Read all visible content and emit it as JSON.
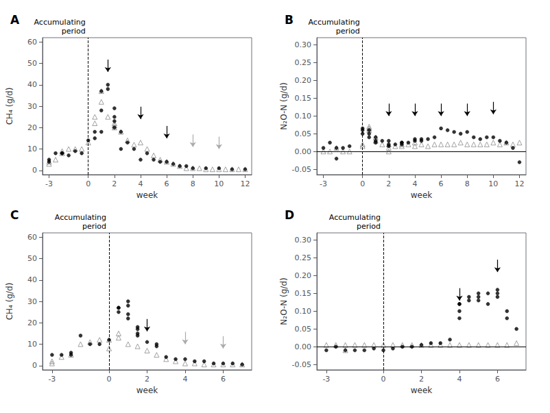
{
  "chart_data": [
    {
      "type": "scatter",
      "title": "A",
      "xlabel": "week",
      "ylabel": "CH₄ (g/d)",
      "xlim": [
        -3.5,
        12.5
      ],
      "ylim": [
        -2,
        62
      ],
      "xticks": [
        -3,
        0,
        2,
        4,
        6,
        8,
        10,
        12
      ],
      "yticks": [
        0,
        10,
        20,
        30,
        40,
        50,
        60
      ],
      "grid": false,
      "vline": 0,
      "annotation": "Accumulating\nperiod",
      "arrows": [
        {
          "x": 1.5,
          "y": 46,
          "color": "black"
        },
        {
          "x": 4,
          "y": 24,
          "color": "black"
        },
        {
          "x": 6,
          "y": 15,
          "color": "black"
        },
        {
          "x": 8,
          "y": 11,
          "color": "#aaaaaa"
        },
        {
          "x": 10,
          "y": 10,
          "color": "#aaaaaa"
        }
      ],
      "series": [
        {
          "marker": "triangle-open",
          "color": "#888888",
          "x": [
            -3,
            -3,
            -2.5,
            -2,
            -2,
            -1.5,
            -1,
            -0.5,
            0,
            0.5,
            0.5,
            1,
            1,
            1.5,
            2,
            2,
            2,
            2.5,
            3,
            3.5,
            4,
            4.5,
            5,
            5.5,
            6,
            6.5,
            7,
            7.5,
            8,
            8.5,
            9,
            9.5,
            10,
            10.5,
            11,
            11.5,
            12
          ],
          "values": [
            4,
            3,
            5,
            8,
            9,
            10,
            10,
            10,
            13,
            25,
            22,
            32,
            37,
            25,
            22,
            21,
            20,
            18,
            14,
            12,
            13,
            10,
            7,
            5,
            4,
            3,
            2,
            1,
            1,
            1,
            0.5,
            0.5,
            0.5,
            0.5,
            0.5,
            0.5,
            0.5
          ]
        },
        {
          "marker": "circle",
          "color": "black",
          "x": [
            -3,
            -3,
            -2.5,
            -2,
            -2,
            -1.5,
            -1,
            -0.5,
            0,
            0.5,
            0.5,
            1,
            1,
            1,
            1.5,
            1.5,
            2,
            2,
            2,
            2,
            2.5,
            2.5,
            3,
            3.5,
            4,
            4.5,
            5,
            5.5,
            6,
            6.5,
            7,
            7.5,
            8,
            9,
            10,
            11,
            12
          ],
          "values": [
            5,
            4,
            8,
            8,
            8,
            7,
            9,
            8,
            14,
            18,
            15,
            18,
            28,
            37,
            40,
            38,
            29,
            25,
            23,
            20,
            18,
            10,
            13,
            10,
            5,
            8,
            5,
            4,
            4,
            3,
            2,
            2,
            1,
            1,
            1,
            0.5,
            0.5
          ]
        }
      ]
    },
    {
      "type": "scatter",
      "title": "B",
      "xlabel": "week",
      "ylabel": "N₂O-N (g/d)",
      "xlim": [
        -3.5,
        12.5
      ],
      "ylim": [
        -0.065,
        0.32
      ],
      "xticks": [
        -3,
        0,
        2,
        4,
        6,
        8,
        10,
        12
      ],
      "yticks": [
        {
          "value": -0.05,
          "label": "-0.05"
        },
        {
          "value": 0.0,
          "label": "0.00"
        },
        {
          "value": 0.05,
          "label": "0.05"
        },
        {
          "value": 0.1,
          "label": "0.10"
        },
        {
          "value": 0.15,
          "label": "0.15"
        },
        {
          "value": 0.2,
          "label": "0.20"
        },
        {
          "value": 0.25,
          "label": "0.25"
        },
        {
          "value": 0.3,
          "label": "0.30"
        }
      ],
      "grid": false,
      "vline": 0,
      "hline": 0.0,
      "annotation": "Accumulating\nperiod",
      "arrows": [
        {
          "x": 2,
          "y": 0.1,
          "color": "black"
        },
        {
          "x": 4,
          "y": 0.1,
          "color": "black"
        },
        {
          "x": 6,
          "y": 0.1,
          "color": "black"
        },
        {
          "x": 8,
          "y": 0.1,
          "color": "black"
        },
        {
          "x": 10,
          "y": 0.105,
          "color": "black"
        }
      ],
      "series": [
        {
          "marker": "triangle-open",
          "color": "#888888",
          "x": [
            -3,
            -2.5,
            -2,
            -1.5,
            -1,
            0,
            0,
            0.5,
            0.5,
            0.5,
            1,
            1,
            1.5,
            2,
            2,
            2,
            2.5,
            3,
            3,
            3.5,
            4,
            4,
            4.5,
            5,
            5.5,
            6,
            6.5,
            7,
            7.5,
            8,
            8.5,
            9,
            9.5,
            10,
            10.5,
            11,
            11.5,
            12
          ],
          "values": [
            0.0,
            0.0,
            0.01,
            0.0,
            0.0,
            0.02,
            0.015,
            0.06,
            0.065,
            0.07,
            0.04,
            0.03,
            0.02,
            0.02,
            0.01,
            0.0,
            0.015,
            0.02,
            0.015,
            0.02,
            0.025,
            0.015,
            0.02,
            0.015,
            0.02,
            0.02,
            0.02,
            0.02,
            0.025,
            0.02,
            0.02,
            0.02,
            0.02,
            0.025,
            0.02,
            0.025,
            0.02,
            0.025
          ]
        },
        {
          "marker": "circle",
          "color": "black",
          "x": [
            -3,
            -2.5,
            -2,
            -2,
            -1.5,
            -1,
            0,
            0,
            0,
            0.5,
            0.5,
            0.5,
            1,
            1,
            1,
            1.5,
            2,
            2,
            2,
            2.5,
            3,
            3,
            3,
            3.5,
            4,
            4,
            4.5,
            4.5,
            5,
            5.5,
            6,
            6.5,
            7,
            7.5,
            8,
            8.5,
            9,
            9.5,
            10,
            10.5,
            11,
            11.5,
            12
          ],
          "values": [
            0.01,
            0.025,
            0.01,
            -0.02,
            0.01,
            0.015,
            0.05,
            0.06,
            0.065,
            0.06,
            0.05,
            0.04,
            0.04,
            0.03,
            0.025,
            0.03,
            0.03,
            0.02,
            0.015,
            0.02,
            0.025,
            0.025,
            0.02,
            0.025,
            0.035,
            0.03,
            0.035,
            0.03,
            0.035,
            0.04,
            0.065,
            0.06,
            0.055,
            0.05,
            0.055,
            0.04,
            0.035,
            0.04,
            0.04,
            0.03,
            0.025,
            0.01,
            -0.03
          ]
        }
      ]
    },
    {
      "type": "scatter",
      "title": "C",
      "xlabel": "week",
      "ylabel": "CH₄ (g/d)",
      "xlim": [
        -3.5,
        7.5
      ],
      "ylim": [
        -2,
        62
      ],
      "xticks": [
        -3,
        0,
        2,
        4,
        6
      ],
      "yticks": [
        0,
        10,
        20,
        30,
        40,
        50,
        60
      ],
      "grid": false,
      "vline": 0,
      "annotation": "Accumulating\nperiod",
      "arrows": [
        {
          "x": 2,
          "y": 16,
          "color": "black"
        },
        {
          "x": 4,
          "y": 10,
          "color": "#aaaaaa"
        },
        {
          "x": 6,
          "y": 8,
          "color": "#aaaaaa"
        }
      ],
      "series": [
        {
          "marker": "triangle-open",
          "color": "#888888",
          "x": [
            -3,
            -3,
            -2.5,
            -2,
            -1.5,
            -1,
            -0.5,
            0,
            0,
            0.5,
            0.5,
            1,
            1.5,
            2,
            2.5,
            3,
            3.5,
            4,
            4.5,
            5,
            5.5,
            6,
            6.5,
            7
          ],
          "values": [
            2,
            1,
            4,
            5,
            10,
            11,
            12,
            8,
            12,
            15,
            13,
            10,
            9,
            7,
            5,
            3,
            2,
            1,
            1,
            0.5,
            0.5,
            0.5,
            0.5,
            0.5
          ]
        },
        {
          "marker": "circle",
          "color": "black",
          "x": [
            -3,
            -2.5,
            -2,
            -2,
            -1.5,
            -1,
            -0.5,
            0,
            0.5,
            0.5,
            0.5,
            1,
            1,
            1,
            1,
            1.5,
            1.5,
            1.5,
            1.5,
            2,
            2.5,
            2.5,
            3,
            3.5,
            4,
            4.5,
            5,
            5.5,
            6,
            6.5,
            7
          ],
          "values": [
            5,
            5,
            5,
            6,
            14,
            10,
            10,
            12,
            27,
            27,
            25,
            28,
            30,
            24,
            22,
            18,
            17,
            15,
            14,
            11,
            10,
            9,
            4,
            3,
            3,
            2,
            2,
            1,
            1,
            1,
            0.5
          ]
        }
      ]
    },
    {
      "type": "scatter",
      "title": "D",
      "xlabel": "week",
      "ylabel": "N₂O-N (g/d)",
      "xlim": [
        -3.5,
        7.5
      ],
      "ylim": [
        -0.065,
        0.32
      ],
      "xticks": [
        -3,
        0,
        2,
        4,
        6
      ],
      "yticks": [
        {
          "value": -0.05,
          "label": "-0.05"
        },
        {
          "value": 0.0,
          "label": "0.00"
        },
        {
          "value": 0.05,
          "label": "0.05"
        },
        {
          "value": 0.1,
          "label": "0.10"
        },
        {
          "value": 0.15,
          "label": "0.15"
        },
        {
          "value": 0.2,
          "label": "0.20"
        },
        {
          "value": 0.25,
          "label": "0.25"
        },
        {
          "value": 0.3,
          "label": "0.30"
        }
      ],
      "grid": false,
      "vline": 0,
      "hline": 0.0,
      "annotation": "Accumulating\nperiod",
      "arrows": [
        {
          "x": 4,
          "y": 0.13,
          "color": "black"
        },
        {
          "x": 6,
          "y": 0.21,
          "color": "black"
        }
      ],
      "series": [
        {
          "marker": "triangle-open",
          "color": "#888888",
          "x": [
            -3,
            -2.5,
            -2,
            -2,
            -1.5,
            -1,
            -0.5,
            0,
            0.5,
            1,
            1.5,
            2,
            2.5,
            3,
            3.5,
            4,
            4.5,
            5,
            5.5,
            6,
            6.5,
            7
          ],
          "values": [
            0.005,
            0.005,
            0.005,
            -0.01,
            0.005,
            0.005,
            0.005,
            0.005,
            0.005,
            0.005,
            0.005,
            0.005,
            0.005,
            0.005,
            0.005,
            0.005,
            0.005,
            0.005,
            0.005,
            0.005,
            0.005,
            0.01
          ]
        },
        {
          "marker": "circle",
          "color": "black",
          "x": [
            -3,
            -2.5,
            -2,
            -1.5,
            -1,
            -0.5,
            0,
            0.5,
            1,
            1.5,
            2,
            2.5,
            3,
            3.5,
            4,
            4,
            4,
            4,
            4.5,
            4.5,
            5,
            5,
            5,
            5.5,
            5.5,
            6,
            6,
            6,
            6.5,
            6.5,
            7
          ],
          "values": [
            -0.01,
            0.0,
            -0.01,
            -0.01,
            -0.01,
            -0.005,
            -0.01,
            -0.005,
            0.0,
            0.0,
            0.005,
            0.01,
            0.01,
            0.02,
            0.08,
            0.1,
            0.12,
            0.12,
            0.13,
            0.14,
            0.15,
            0.14,
            0.13,
            0.12,
            0.15,
            0.15,
            0.16,
            0.14,
            0.1,
            0.08,
            0.05
          ]
        }
      ]
    }
  ]
}
